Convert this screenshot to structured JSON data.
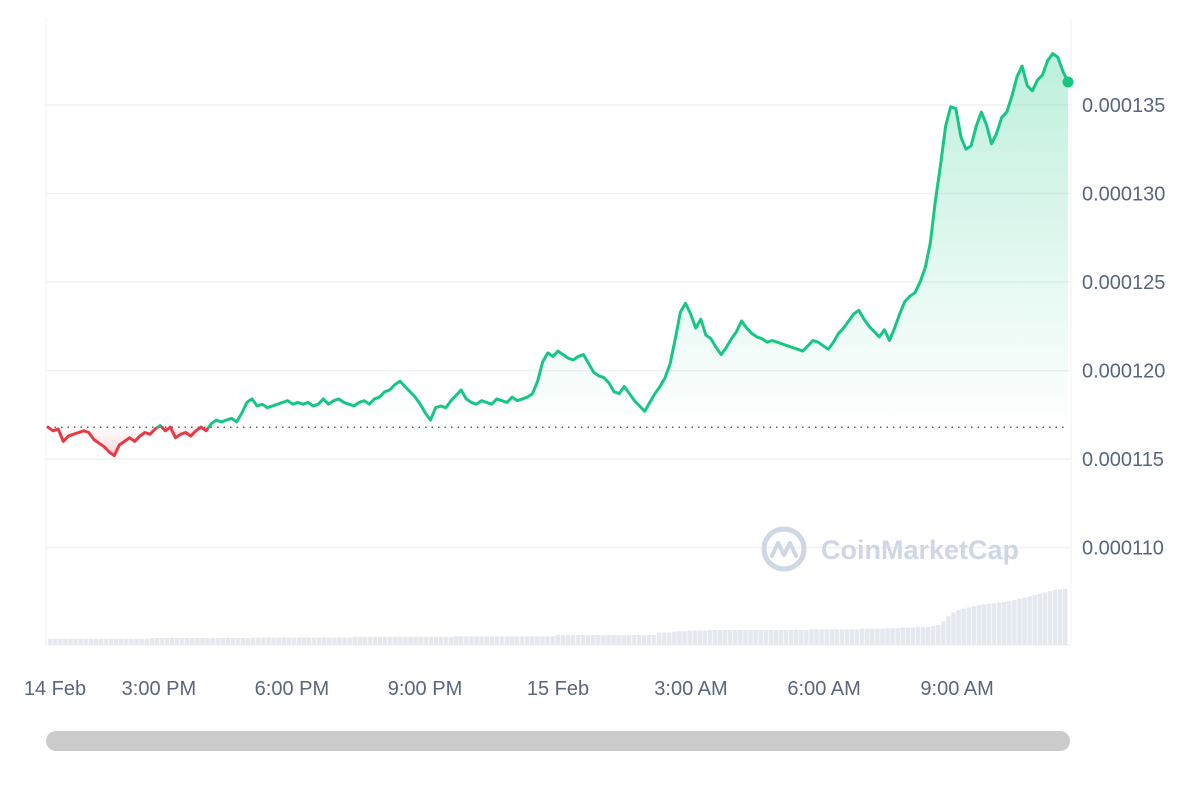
{
  "colors": {
    "up": "#16c784",
    "down": "#ea3943",
    "grid": "#eff2f5",
    "volume": "#e4e8ef",
    "label": "#58667e"
  },
  "watermark": {
    "text": "CoinMarketCap",
    "icon": "coinmarketcap-logo-icon"
  },
  "chart_data": {
    "type": "line",
    "title": "",
    "xlabel": "",
    "ylabel": "",
    "x_axis": {
      "start": "2024-02-14 12:30",
      "end": "2024-02-15 11:30",
      "ticks": [
        "14 Feb",
        "3:00 PM",
        "6:00 PM",
        "9:00 PM",
        "15 Feb",
        "3:00 AM",
        "6:00 AM",
        "9:00 AM"
      ],
      "tick_times": [
        "2024-02-14 12:00",
        "2024-02-14 15:00",
        "2024-02-14 18:00",
        "2024-02-14 21:00",
        "2024-02-15 00:00",
        "2024-02-15 03:00",
        "2024-02-15 06:00",
        "2024-02-15 09:00"
      ]
    },
    "y_axis": {
      "side": "right",
      "ticks": [
        "0.000110",
        "0.000115",
        "0.000120",
        "0.000125",
        "0.000130",
        "0.000135"
      ],
      "tick_values": [
        0.00011,
        0.000115,
        0.00012,
        0.000125,
        0.00013,
        0.000135
      ],
      "range": [
        0.0001045,
        0.0001398
      ]
    },
    "grid": true,
    "baseline": 0.0001168,
    "series": [
      {
        "values": [
          0.0001168,
          0.0001166,
          0.0001167,
          0.000116,
          0.0001163,
          0.0001164,
          0.0001165,
          0.0001166,
          0.0001165,
          0.0001161,
          0.0001159,
          0.0001157,
          0.0001154,
          0.0001152,
          0.0001158,
          0.000116,
          0.0001162,
          0.000116,
          0.0001163,
          0.0001165,
          0.0001164,
          0.0001167,
          0.0001169,
          0.0001166,
          0.0001168,
          0.0001162,
          0.0001164,
          0.0001165,
          0.0001163,
          0.0001166,
          0.0001168,
          0.0001166,
          0.000117,
          0.0001172,
          0.0001171,
          0.0001172,
          0.0001173,
          0.0001171,
          0.0001176,
          0.0001182,
          0.0001184,
          0.000118,
          0.0001181,
          0.0001179,
          0.000118,
          0.0001181,
          0.0001182,
          0.0001183,
          0.0001181,
          0.0001182,
          0.0001181,
          0.0001182,
          0.000118,
          0.0001181,
          0.0001184,
          0.0001181,
          0.0001183,
          0.0001184,
          0.0001182,
          0.0001181,
          0.000118,
          0.0001182,
          0.0001183,
          0.0001181,
          0.0001184,
          0.0001185,
          0.0001188,
          0.0001189,
          0.0001192,
          0.0001194,
          0.0001191,
          0.0001188,
          0.0001185,
          0.0001181,
          0.0001176,
          0.0001172,
          0.0001179,
          0.000118,
          0.0001179,
          0.0001183,
          0.0001186,
          0.0001189,
          0.0001184,
          0.0001182,
          0.0001181,
          0.0001183,
          0.0001182,
          0.0001181,
          0.0001184,
          0.0001183,
          0.0001182,
          0.0001185,
          0.0001183,
          0.0001184,
          0.0001185,
          0.0001187,
          0.0001194,
          0.0001205,
          0.000121,
          0.0001208,
          0.0001211,
          0.0001209,
          0.0001207,
          0.0001206,
          0.0001208,
          0.0001209,
          0.0001204,
          0.0001199,
          0.0001197,
          0.0001196,
          0.0001193,
          0.0001188,
          0.0001187,
          0.0001191,
          0.0001187,
          0.0001183,
          0.000118,
          0.0001177,
          0.0001182,
          0.0001187,
          0.0001191,
          0.0001196,
          0.0001204,
          0.0001218,
          0.0001233,
          0.0001238,
          0.0001232,
          0.0001224,
          0.0001229,
          0.000122,
          0.0001218,
          0.0001213,
          0.0001209,
          0.0001213,
          0.0001218,
          0.0001222,
          0.0001228,
          0.0001224,
          0.0001221,
          0.0001219,
          0.0001218,
          0.0001216,
          0.0001217,
          0.0001216,
          0.0001215,
          0.0001214,
          0.0001213,
          0.0001212,
          0.0001211,
          0.0001214,
          0.0001217,
          0.0001216,
          0.0001214,
          0.0001212,
          0.0001216,
          0.0001221,
          0.0001224,
          0.0001228,
          0.0001232,
          0.0001234,
          0.0001229,
          0.0001225,
          0.0001222,
          0.0001219,
          0.0001223,
          0.0001217,
          0.0001224,
          0.0001232,
          0.0001239,
          0.0001242,
          0.0001244,
          0.000125,
          0.0001258,
          0.0001272,
          0.0001296,
          0.0001316,
          0.0001338,
          0.0001349,
          0.0001348,
          0.0001332,
          0.0001325,
          0.0001327,
          0.0001338,
          0.0001346,
          0.0001339,
          0.0001328,
          0.0001334,
          0.0001343,
          0.0001346,
          0.0001355,
          0.0001366,
          0.0001372,
          0.0001361,
          0.0001358,
          0.0001364,
          0.0001367,
          0.0001375,
          0.0001379,
          0.0001377,
          0.0001369,
          0.0001363
        ]
      }
    ],
    "volume": {
      "note": "volume bars shown without an axis",
      "values": [
        5,
        5,
        5,
        5,
        5,
        5,
        5,
        5,
        5,
        5,
        5,
        5,
        5,
        5,
        5,
        5,
        5,
        5,
        5,
        5,
        5.5,
        5.5,
        5.5,
        5.5,
        5.5,
        5.5,
        5.5,
        5.5,
        5.5,
        5.5,
        5.5,
        5.5,
        5.5,
        5.5,
        5.5,
        5.5,
        5.5,
        5.5,
        5.5,
        5.5,
        6,
        6,
        6,
        6,
        6,
        6,
        6,
        6,
        6,
        6,
        6,
        6,
        6,
        6,
        6,
        6,
        6,
        6,
        6,
        6,
        6.5,
        6.5,
        6.5,
        6.5,
        6.5,
        6.5,
        6.5,
        6.5,
        6.5,
        6.5,
        6.5,
        6.5,
        6.5,
        6.5,
        6.5,
        6.5,
        6.5,
        6.5,
        6.5,
        6.5,
        7,
        7,
        7,
        7,
        7,
        7,
        7,
        7,
        7,
        7,
        7,
        7,
        7,
        7,
        7,
        7,
        7,
        7,
        7,
        7,
        8,
        8,
        8,
        8,
        8,
        8,
        8,
        8,
        8,
        8,
        8,
        8,
        8,
        8,
        8,
        8,
        8,
        8,
        8,
        8,
        10,
        10,
        10,
        10.5,
        11,
        11,
        11.5,
        11.5,
        11.5,
        11.5,
        12,
        12,
        12,
        12,
        12,
        12,
        12,
        12,
        12,
        12,
        12,
        12,
        12,
        12,
        12,
        12,
        12,
        12,
        12,
        12,
        12.5,
        12.5,
        12.5,
        12.5,
        12.5,
        12.5,
        12.5,
        12.5,
        12.5,
        12.5,
        13,
        13,
        13,
        13,
        13,
        13.5,
        13.5,
        13.5,
        14,
        14,
        14,
        14.5,
        14.5,
        14.5,
        15,
        16,
        19,
        23,
        26,
        28,
        29,
        30,
        31,
        32,
        32.5,
        33,
        33.5,
        34,
        34.5,
        35,
        36,
        37,
        38,
        39,
        40,
        41,
        42,
        43,
        44,
        44.5,
        45
      ]
    }
  }
}
